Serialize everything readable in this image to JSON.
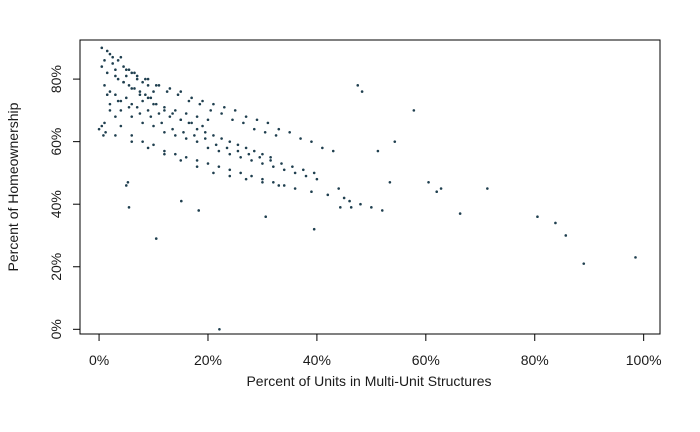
{
  "chart_data": {
    "type": "scatter",
    "title": "",
    "xlabel": "Percent of Units in Multi-Unit Structures",
    "ylabel": "Percent of Homeownership",
    "xlim": [
      -0.035,
      1.03
    ],
    "ylim": [
      -0.015,
      0.925
    ],
    "x_ticks": [
      0,
      0.2,
      0.4,
      0.6,
      0.8,
      1.0
    ],
    "x_tick_labels": [
      "0%",
      "20%",
      "40%",
      "60%",
      "80%",
      "100%"
    ],
    "y_ticks": [
      0,
      0.2,
      0.4,
      0.6,
      0.8
    ],
    "y_tick_labels": [
      "0%",
      "20%",
      "40%",
      "60%",
      "80%"
    ],
    "grid": false,
    "legend": "none",
    "point_color": "#1f3f4f",
    "series": [
      {
        "x": [
          0.005,
          0.01,
          0.015,
          0.02,
          0.025,
          0.03,
          0.035,
          0.04,
          0.045,
          0.05,
          0.055,
          0.06,
          0.065,
          0.07,
          0.075,
          0.08,
          0.085,
          0.09,
          0.095,
          0.1,
          0.01,
          0.02,
          0.03,
          0.04,
          0.05,
          0.06,
          0.07,
          0.08,
          0.09,
          0.1,
          0.11,
          0.12,
          0.13,
          0.14,
          0.15,
          0.16,
          0.17,
          0.18,
          0.19,
          0.2,
          0.03,
          0.045,
          0.06,
          0.075,
          0.09,
          0.105,
          0.12,
          0.135,
          0.15,
          0.165,
          0.18,
          0.195,
          0.21,
          0.225,
          0.24,
          0.255,
          0.27,
          0.285,
          0.3,
          0.315,
          0.02,
          0.04,
          0.06,
          0.08,
          0.1,
          0.12,
          0.14,
          0.16,
          0.18,
          0.2,
          0.22,
          0.24,
          0.26,
          0.28,
          0.3,
          0.32,
          0.34,
          0.36,
          0.38,
          0.4,
          0.015,
          0.035,
          0.055,
          0.075,
          0.095,
          0.115,
          0.135,
          0.155,
          0.175,
          0.195,
          0.215,
          0.235,
          0.255,
          0.275,
          0.295,
          0.315,
          0.335,
          0.355,
          0.375,
          0.395,
          0.0,
          0.01,
          0.02,
          0.03,
          0.04,
          0.06,
          0.08,
          0.1,
          0.12,
          0.14,
          0.16,
          0.18,
          0.2,
          0.22,
          0.24,
          0.26,
          0.28,
          0.3,
          0.32,
          0.34,
          0.05,
          0.07,
          0.09,
          0.11,
          0.13,
          0.15,
          0.17,
          0.19,
          0.21,
          0.23,
          0.25,
          0.27,
          0.29,
          0.31,
          0.33,
          0.35,
          0.37,
          0.39,
          0.41,
          0.43,
          0.005,
          0.015,
          0.025,
          0.035,
          0.045,
          0.055,
          0.065,
          0.085,
          0.105,
          0.125,
          0.145,
          0.165,
          0.185,
          0.205,
          0.225,
          0.245,
          0.265,
          0.285,
          0.305,
          0.325,
          0.03,
          0.06,
          0.09,
          0.12,
          0.15,
          0.18,
          0.21,
          0.24,
          0.27,
          0.3,
          0.33,
          0.36,
          0.39,
          0.42,
          0.45,
          0.44,
          0.46,
          0.48,
          0.5,
          0.52,
          0.055,
          0.053,
          0.05,
          0.105,
          0.151,
          0.183,
          0.221,
          0.306,
          0.395,
          0.443,
          0.463,
          0.475,
          0.483,
          0.512,
          0.534,
          0.543,
          0.578,
          0.605,
          0.62,
          0.628,
          0.663,
          0.713,
          0.805,
          0.838,
          0.857,
          0.89,
          0.985,
          0.005,
          0.008,
          0.012
        ],
        "y": [
          0.84,
          0.86,
          0.82,
          0.88,
          0.85,
          0.83,
          0.8,
          0.87,
          0.79,
          0.81,
          0.78,
          0.82,
          0.77,
          0.8,
          0.76,
          0.79,
          0.75,
          0.78,
          0.74,
          0.76,
          0.78,
          0.76,
          0.75,
          0.73,
          0.74,
          0.72,
          0.71,
          0.73,
          0.7,
          0.72,
          0.69,
          0.71,
          0.68,
          0.7,
          0.67,
          0.69,
          0.66,
          0.68,
          0.65,
          0.67,
          0.81,
          0.79,
          0.77,
          0.75,
          0.74,
          0.72,
          0.7,
          0.69,
          0.67,
          0.66,
          0.64,
          0.63,
          0.62,
          0.61,
          0.6,
          0.59,
          0.58,
          0.57,
          0.56,
          0.55,
          0.72,
          0.7,
          0.68,
          0.66,
          0.65,
          0.63,
          0.62,
          0.61,
          0.6,
          0.58,
          0.57,
          0.56,
          0.55,
          0.54,
          0.53,
          0.52,
          0.51,
          0.5,
          0.49,
          0.48,
          0.75,
          0.73,
          0.71,
          0.69,
          0.68,
          0.66,
          0.64,
          0.63,
          0.62,
          0.61,
          0.59,
          0.58,
          0.57,
          0.56,
          0.55,
          0.54,
          0.53,
          0.52,
          0.51,
          0.5,
          0.64,
          0.66,
          0.7,
          0.68,
          0.65,
          0.62,
          0.6,
          0.59,
          0.57,
          0.56,
          0.55,
          0.54,
          0.53,
          0.52,
          0.51,
          0.5,
          0.49,
          0.48,
          0.47,
          0.46,
          0.83,
          0.81,
          0.8,
          0.78,
          0.77,
          0.76,
          0.74,
          0.73,
          0.72,
          0.71,
          0.7,
          0.68,
          0.67,
          0.66,
          0.64,
          0.63,
          0.61,
          0.6,
          0.58,
          0.57,
          0.9,
          0.89,
          0.87,
          0.86,
          0.84,
          0.83,
          0.82,
          0.8,
          0.78,
          0.76,
          0.75,
          0.73,
          0.72,
          0.7,
          0.69,
          0.67,
          0.66,
          0.64,
          0.63,
          0.62,
          0.62,
          0.6,
          0.58,
          0.56,
          0.54,
          0.52,
          0.5,
          0.49,
          0.48,
          0.47,
          0.46,
          0.45,
          0.44,
          0.43,
          0.42,
          0.45,
          0.41,
          0.4,
          0.39,
          0.38,
          0.39,
          0.47,
          0.46,
          0.29,
          0.41,
          0.38,
          0.0,
          0.36,
          0.32,
          0.39,
          0.39,
          0.78,
          0.76,
          0.57,
          0.47,
          0.6,
          0.7,
          0.47,
          0.44,
          0.45,
          0.37,
          0.45,
          0.36,
          0.34,
          0.3,
          0.21,
          0.23,
          0.65,
          0.62,
          0.63
        ]
      }
    ]
  }
}
